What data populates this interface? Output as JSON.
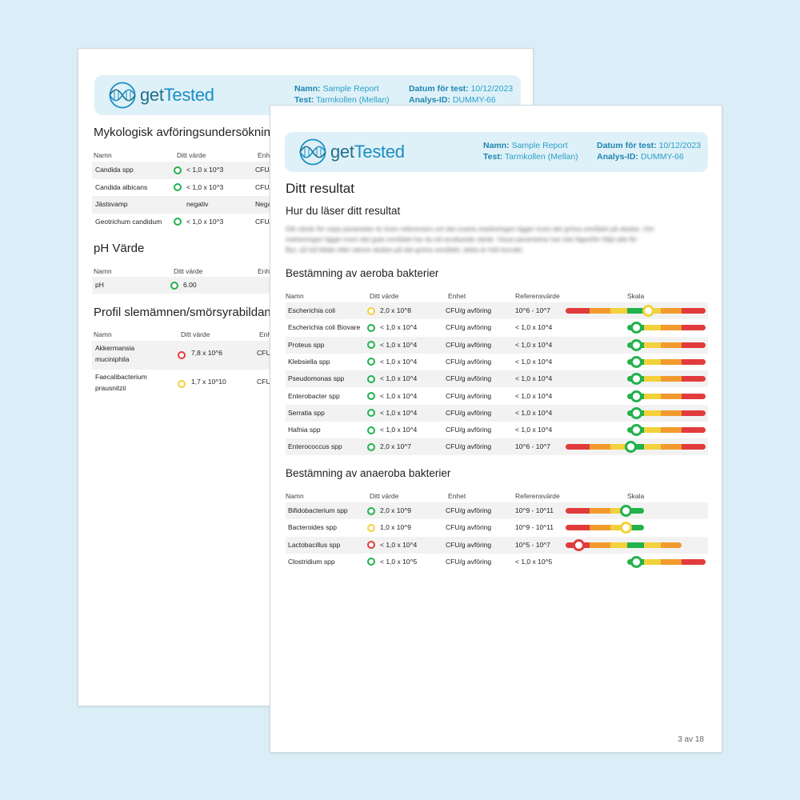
{
  "brand": {
    "name_part1": "get",
    "name_part2": "Tested"
  },
  "header": {
    "name_label": "Namn:",
    "name_value": "Sample Report",
    "test_label": "Test:",
    "test_value": "Tarmkollen (Mellan)",
    "date_label": "Datum för test:",
    "date_value": "10/12/2023",
    "id_label": "Analys-ID:",
    "id_value": "DUMMY-66"
  },
  "colors": {
    "green": "#22b24c",
    "yellow": "#f2d13b",
    "orange": "#f29a2e",
    "red": "#e23b3b"
  },
  "back_page": {
    "mykologisk": {
      "title": "Mykologisk avföringsundersökning",
      "headers": [
        "Namn",
        "Ditt värde",
        "Enhet"
      ],
      "rows": [
        {
          "name": "Candida spp",
          "status": "green",
          "value": "< 1,0 x 10^3",
          "unit": "CFU/"
        },
        {
          "name": "Candida albicans",
          "status": "green",
          "value": "< 1,0 x 10^3",
          "unit": "CFU/"
        },
        {
          "name": "Jästsvamp",
          "status": "none",
          "value": "negativ",
          "unit": "Nega"
        },
        {
          "name": "Geotrichum candidum",
          "status": "green",
          "value": "< 1,0 x 10^3",
          "unit": "CFU/"
        }
      ]
    },
    "ph": {
      "title": "pH Värde",
      "headers": [
        "Namn",
        "Ditt värde",
        "Enh"
      ],
      "rows": [
        {
          "name": "pH",
          "status": "green",
          "value": "6.00"
        }
      ]
    },
    "profil": {
      "title": "Profil slemämnen/smörsyrabildande",
      "headers": [
        "Namn",
        "Ditt värde",
        "Enh"
      ],
      "rows": [
        {
          "name_l1": "Akkermansia",
          "name_l2": "muciniphila",
          "status": "red",
          "value": "7,8 x 10^6",
          "unit": "CFU"
        },
        {
          "name_l1": "Faecalibacterium",
          "name_l2": "prausnitzii",
          "status": "yellow",
          "value": "1,7 x 10^10",
          "unit": "CFU"
        }
      ]
    }
  },
  "front_page": {
    "title": "Ditt resultat",
    "howto_title": "Hur du läser ditt resultat",
    "howto_lines": [
      "Ditt värde för varje parameter är inom referensen om det svarta markeringen ligger inom det gröna området på skalan. Om",
      "markeringen ligger inom det gula området har du ett avvikande värde. Vissa parametrar har inte lägre/för följd alla för",
      "Byt, så full bildar eller sämre skalan på det gröna området, detta är helt korrekt."
    ],
    "aerob": {
      "title": "Bestämning av aeroba bakterier",
      "headers": [
        "Namn",
        "Ditt värde",
        "Enhet",
        "Referensvärde",
        "Skala"
      ],
      "rows": [
        {
          "name": "Escherichia coli",
          "status": "yellow",
          "value": "2,0 x 10^8",
          "unit": "CFU/g avföring",
          "ref": "10^6 - 10^7",
          "scale": "full",
          "marker": 0.59
        },
        {
          "name": "Escherichia coli Biovare",
          "status": "green",
          "value": "< 1,0 x 10^4",
          "unit": "CFU/g avföring",
          "ref": "< 1,0 x 10^4",
          "scale": "upper",
          "marker": 0.5
        },
        {
          "name": "Proteus spp",
          "status": "green",
          "value": "< 1,0 x 10^4",
          "unit": "CFU/g avföring",
          "ref": "< 1,0 x 10^4",
          "scale": "upper",
          "marker": 0.5
        },
        {
          "name": "Klebsiella spp",
          "status": "green",
          "value": "< 1,0 x 10^4",
          "unit": "CFU/g avföring",
          "ref": "< 1,0 x 10^4",
          "scale": "upper",
          "marker": 0.5
        },
        {
          "name": "Pseudomonas spp",
          "status": "green",
          "value": "< 1,0 x 10^4",
          "unit": "CFU/g avföring",
          "ref": "< 1,0 x 10^4",
          "scale": "upper",
          "marker": 0.5
        },
        {
          "name": "Enterobacter spp",
          "status": "green",
          "value": "< 1,0 x 10^4",
          "unit": "CFU/g avföring",
          "ref": "< 1,0 x 10^4",
          "scale": "upper",
          "marker": 0.5
        },
        {
          "name": "Serratia spp",
          "status": "green",
          "value": "< 1,0 x 10^4",
          "unit": "CFU/g avföring",
          "ref": "< 1,0 x 10^4",
          "scale": "upper",
          "marker": 0.5
        },
        {
          "name": "Hafnia spp",
          "status": "green",
          "value": "< 1,0 x 10^4",
          "unit": "CFU/g avföring",
          "ref": "< 1,0 x 10^4",
          "scale": "upper",
          "marker": 0.5
        },
        {
          "name": "Enterococcus spp",
          "status": "green",
          "value": "2,0 x 10^7",
          "unit": "CFU/g avföring",
          "ref": "10^6 - 10^7",
          "scale": "full",
          "marker": 0.46
        }
      ]
    },
    "anaerob": {
      "title": "Bestämning av anaeroba bakterier",
      "headers": [
        "Namn",
        "Ditt värde",
        "Enhet",
        "Referensvärde",
        "Skala"
      ],
      "rows": [
        {
          "name": "Bifidobacterium spp",
          "status": "green",
          "value": "2,0 x 10^9",
          "unit": "CFU/g avföring",
          "ref": "10^9 - 10^11",
          "scale": "lower",
          "marker": 0.43
        },
        {
          "name": "Bacteroides spp",
          "status": "yellow",
          "value": "1,0 x 10^9",
          "unit": "CFU/g avföring",
          "ref": "10^9 - 10^11",
          "scale": "lower",
          "marker": 0.43
        },
        {
          "name": "Lactobacillus spp",
          "status": "red",
          "value": "< 1,0 x 10^4",
          "unit": "CFU/g avföring",
          "ref": "10^5 - 10^7",
          "scale": "full_short",
          "marker": 0.09
        },
        {
          "name": "Clostridium spp",
          "status": "green",
          "value": "< 1,0 x 10^5",
          "unit": "CFU/g avföring",
          "ref": "< 1,0 x 10^5",
          "scale": "upper",
          "marker": 0.5
        }
      ]
    },
    "page_number": "3 av 18"
  }
}
